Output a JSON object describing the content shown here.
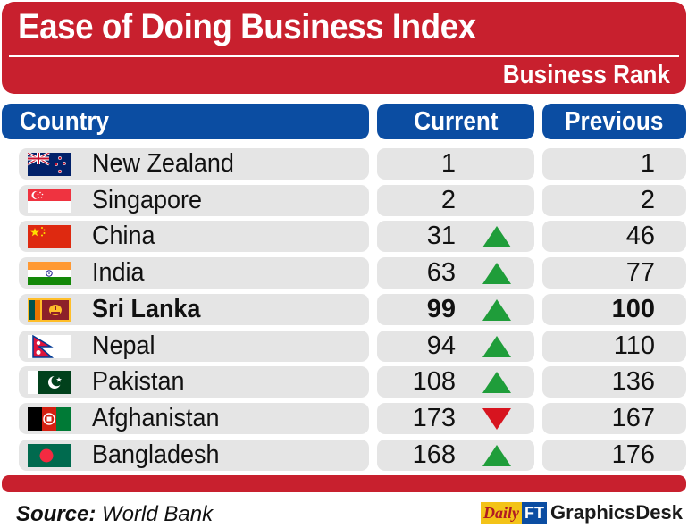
{
  "header": {
    "title": "Ease of Doing Business Index",
    "subtitle": "Business Rank"
  },
  "chart_data": {
    "type": "table",
    "columns": [
      "Country",
      "Current",
      "Previous"
    ],
    "rows": [
      {
        "country": "New Zealand",
        "flag": "new-zealand-flag",
        "current": "1",
        "previous": "1",
        "trend": "none",
        "highlight": false
      },
      {
        "country": "Singapore",
        "flag": "singapore-flag",
        "current": "2",
        "previous": "2",
        "trend": "none",
        "highlight": false
      },
      {
        "country": "China",
        "flag": "china-flag",
        "current": "31",
        "previous": "46",
        "trend": "up",
        "highlight": false
      },
      {
        "country": "India",
        "flag": "india-flag",
        "current": "63",
        "previous": "77",
        "trend": "up",
        "highlight": false
      },
      {
        "country": "Sri Lanka",
        "flag": "sri-lanka-flag",
        "current": "99",
        "previous": "100",
        "trend": "up",
        "highlight": true
      },
      {
        "country": "Nepal",
        "flag": "nepal-flag",
        "current": "94",
        "previous": "110",
        "trend": "up",
        "highlight": false
      },
      {
        "country": "Pakistan",
        "flag": "pakistan-flag",
        "current": "108",
        "previous": "136",
        "trend": "up",
        "highlight": false
      },
      {
        "country": "Afghanistan",
        "flag": "afghanistan-flag",
        "current": "173",
        "previous": "167",
        "trend": "down",
        "highlight": false
      },
      {
        "country": "Bangladesh",
        "flag": "bangladesh-flag",
        "current": "168",
        "previous": "176",
        "trend": "up",
        "highlight": false
      }
    ]
  },
  "footer": {
    "source_label": "Source:",
    "source_value": "World Bank",
    "logo_daily": "Daily",
    "logo_ft": "FT",
    "credit": "GraphicsDesk"
  },
  "colors": {
    "banner_red": "#c8202e",
    "header_blue": "#0b4da2",
    "row_gray": "#e5e5e5",
    "arrow_up": "#1f9d3a",
    "arrow_down": "#d7141f"
  }
}
